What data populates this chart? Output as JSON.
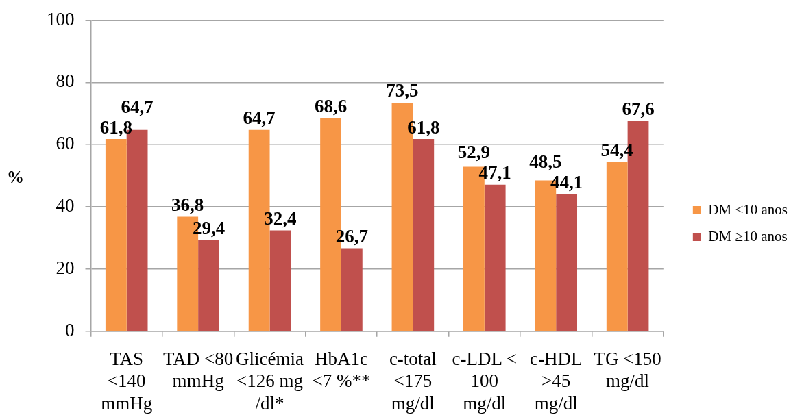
{
  "chart_data": {
    "type": "bar",
    "ylabel": "%",
    "categories": [
      "TAS\n<140\nmmHg",
      "TAD <80\nmmHg",
      "Glicémia\n<126 mg\n/dl*",
      "HbA1c\n<7 %**",
      "c-total\n<175\nmg/dl",
      "c-LDL <\n100\nmg/dl",
      "c-HDL\n>45\nmg/dl",
      "TG <150\nmg/dl"
    ],
    "series": [
      {
        "name": "DM <10 anos",
        "color": "#f79646",
        "values": [
          61.8,
          36.8,
          64.7,
          68.6,
          73.5,
          52.9,
          48.5,
          54.4
        ],
        "value_labels": [
          "61,8",
          "36,8",
          "64,7",
          "68,6",
          "73,5",
          "52,9",
          "48,5",
          "54,4"
        ]
      },
      {
        "name": "DM ≥10 anos",
        "color": "#c0504d",
        "values": [
          64.7,
          29.4,
          32.4,
          26.7,
          61.8,
          47.1,
          44.1,
          67.6
        ],
        "value_labels": [
          "64,7",
          "29,4",
          "32,4",
          "26,7",
          "61,8",
          "47,1",
          "44,1",
          "67,6"
        ]
      }
    ],
    "ylim": [
      0,
      100
    ],
    "yticks": [
      0,
      20,
      40,
      60,
      80,
      100
    ],
    "grid": "y",
    "legend": "right"
  }
}
